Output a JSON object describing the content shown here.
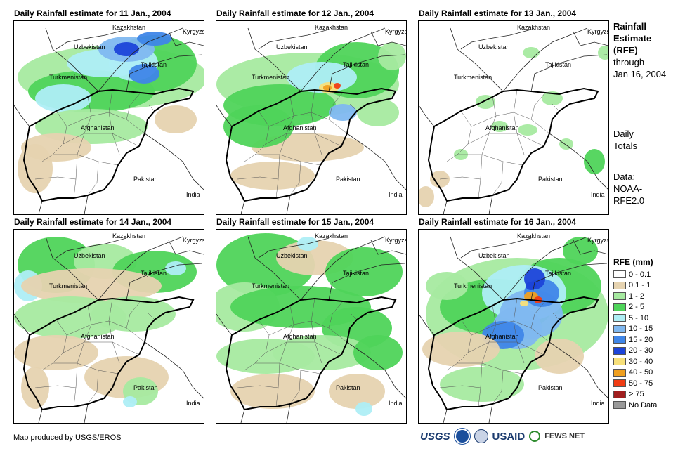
{
  "panels": [
    {
      "title": "Daily Rainfall estimate for 11 Jan., 2004",
      "intensity": "heavy-north"
    },
    {
      "title": "Daily Rainfall estimate for 12 Jan., 2004",
      "intensity": "moderate-north"
    },
    {
      "title": "Daily Rainfall estimate for 13 Jan., 2004",
      "intensity": "dry"
    },
    {
      "title": "Daily Rainfall estimate for 14 Jan., 2004",
      "intensity": "light"
    },
    {
      "title": "Daily Rainfall estimate for 15 Jan., 2004",
      "intensity": "light-moderate"
    },
    {
      "title": "Daily Rainfall estimate for 16 Jan., 2004",
      "intensity": "heavy-east"
    }
  ],
  "labels": {
    "kazakhstan": "Kazakhstan",
    "kyrgyzstan": "Kyrgyzstan",
    "uzbekistan": "Uzbekistan",
    "tajikistan": "Tajikistan",
    "turkmenistan": "Turkmenistan",
    "afghanistan": "Afghanistan",
    "pakistan": "Pakistan",
    "india": "India"
  },
  "side": {
    "line1": "Rainfall",
    "line2": "Estimate",
    "line3": "(RFE)",
    "line4": "through",
    "line5": "Jan 16, 2004",
    "totals1": "Daily",
    "totals2": "Totals",
    "data1": "Data:",
    "data2": "NOAA-",
    "data3": "RFE2.0"
  },
  "legend": {
    "title": "RFE (mm)",
    "items": [
      {
        "label": "0 - 0.1",
        "color": "#ffffff"
      },
      {
        "label": "0.1 - 1",
        "color": "#e6d3b0"
      },
      {
        "label": "1 - 2",
        "color": "#a6eaa0"
      },
      {
        "label": "2 - 5",
        "color": "#4fd45a"
      },
      {
        "label": "5 - 10",
        "color": "#aeeef5"
      },
      {
        "label": "10 - 15",
        "color": "#7fb8f0"
      },
      {
        "label": "15 - 20",
        "color": "#3f86e8"
      },
      {
        "label": "20 - 30",
        "color": "#1c44d9"
      },
      {
        "label": "30 - 40",
        "color": "#f7e07a"
      },
      {
        "label": "40 - 50",
        "color": "#f0a020"
      },
      {
        "label": "50 - 75",
        "color": "#f03c14"
      },
      {
        "label": "> 75",
        "color": "#a01e1e"
      },
      {
        "label": "No Data",
        "color": "#9a9a9a"
      }
    ]
  },
  "footer": {
    "credit": "Map produced by USGS/EROS",
    "usgs": "USGS",
    "usaid": "USAID",
    "fews": "FEWS NET"
  }
}
